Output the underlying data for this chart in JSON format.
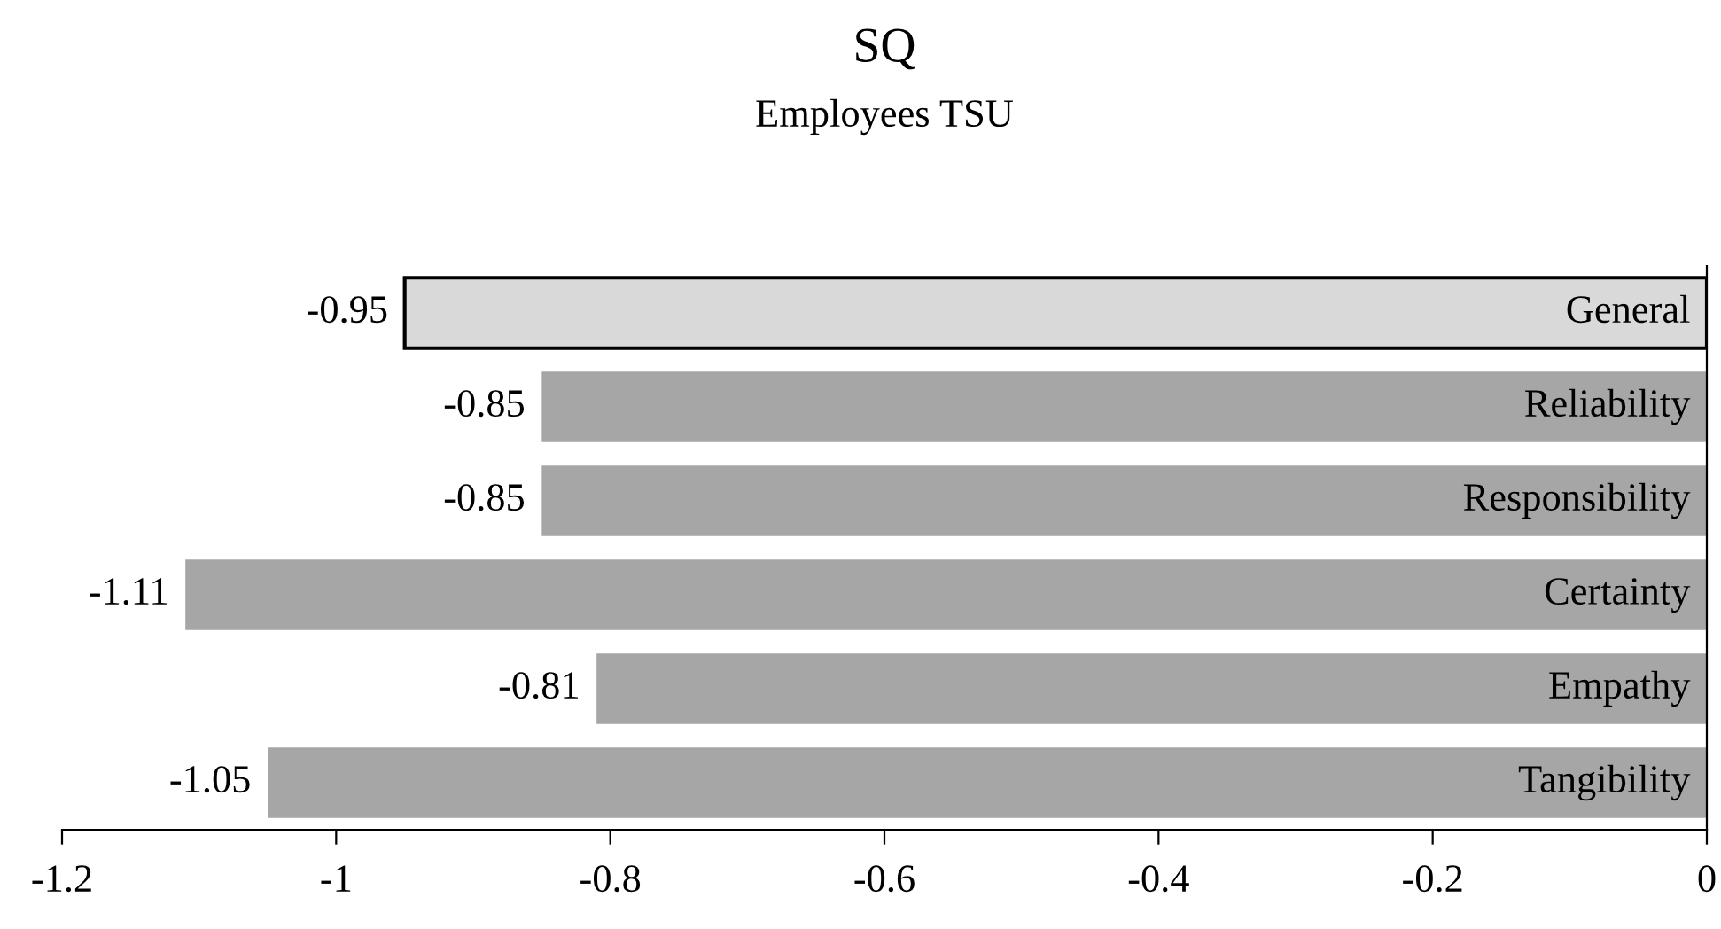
{
  "chart_data": {
    "type": "bar",
    "orientation": "horizontal",
    "title": "SQ",
    "subtitle": "Employees TSU",
    "categories": [
      "General",
      "Reliability",
      "Responsibility",
      "Certainty",
      "Empathy",
      "Tangibility"
    ],
    "values": [
      -0.95,
      -0.85,
      -0.85,
      -1.11,
      -0.81,
      -1.05
    ],
    "colors": [
      "#d9d9d9",
      "#a6a6a6",
      "#a6a6a6",
      "#a6a6a6",
      "#a6a6a6",
      "#a6a6a6"
    ],
    "xlim": [
      -1.2,
      0
    ],
    "xticks": [
      -1.2,
      -1,
      -0.8,
      -0.6,
      -0.4,
      -0.2,
      0
    ],
    "data_labels": true,
    "grid": false
  }
}
